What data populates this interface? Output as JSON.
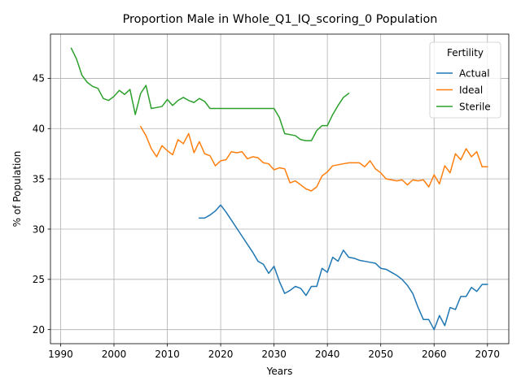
{
  "chart_data": {
    "type": "line",
    "title": "Proportion Male in Whole_Q1_IQ_scoring_0 Population",
    "xlabel": "Years",
    "ylabel": "% of Population",
    "xlim": [
      1988.1,
      2074.0
    ],
    "ylim": [
      18.6,
      49.4
    ],
    "xticks": [
      1990,
      2000,
      2010,
      2020,
      2030,
      2040,
      2050,
      2060,
      2070
    ],
    "yticks": [
      20,
      25,
      30,
      35,
      40,
      45
    ],
    "grid": true,
    "legend": {
      "title": "Fertility",
      "position": "top-right"
    },
    "series": [
      {
        "name": "Actual",
        "color": "#1f77b4",
        "x": [
          2016,
          2017,
          2018,
          2019,
          2020,
          2021,
          2022,
          2023,
          2024,
          2025,
          2026,
          2027,
          2028,
          2029,
          2030,
          2031,
          2032,
          2033,
          2034,
          2035,
          2036,
          2037,
          2038,
          2039,
          2040,
          2041,
          2042,
          2043,
          2044,
          2045,
          2046,
          2047,
          2048,
          2049,
          2050,
          2051,
          2052,
          2053,
          2054,
          2055,
          2056,
          2057,
          2058,
          2059,
          2060,
          2061,
          2062,
          2063,
          2064,
          2065,
          2066,
          2067,
          2068,
          2069,
          2070
        ],
        "y": [
          31.1,
          31.1,
          31.4,
          31.8,
          32.4,
          31.7,
          30.9,
          30.1,
          29.3,
          28.5,
          27.7,
          26.8,
          26.5,
          25.6,
          26.3,
          24.8,
          23.6,
          23.9,
          24.3,
          24.1,
          23.4,
          24.3,
          24.3,
          26.1,
          25.7,
          27.2,
          26.8,
          27.9,
          27.2,
          27.1,
          26.9,
          26.8,
          26.7,
          26.6,
          26.1,
          26.0,
          25.7,
          25.4,
          25.0,
          24.4,
          23.6,
          22.2,
          21.0,
          21.0,
          20.0,
          21.4,
          20.4,
          22.2,
          22.0,
          23.3,
          23.3,
          24.2,
          23.8,
          24.5,
          24.5
        ]
      },
      {
        "name": "Ideal",
        "color": "#ff7f0e",
        "x": [
          2005,
          2006,
          2007,
          2008,
          2009,
          2010,
          2011,
          2012,
          2013,
          2014,
          2015,
          2016,
          2017,
          2018,
          2019,
          2020,
          2021,
          2022,
          2023,
          2024,
          2025,
          2026,
          2027,
          2028,
          2029,
          2030,
          2031,
          2032,
          2033,
          2034,
          2035,
          2036,
          2037,
          2038,
          2039,
          2040,
          2041,
          2042,
          2043,
          2044,
          2045,
          2046,
          2047,
          2048,
          2049,
          2050,
          2051,
          2052,
          2053,
          2054,
          2055,
          2056,
          2057,
          2058,
          2059,
          2060,
          2061,
          2062,
          2063,
          2064,
          2065,
          2066,
          2067,
          2068,
          2069,
          2070
        ],
        "y": [
          40.2,
          39.3,
          38.0,
          37.2,
          38.3,
          37.8,
          37.4,
          38.9,
          38.5,
          39.5,
          37.6,
          38.7,
          37.5,
          37.3,
          36.3,
          36.8,
          36.9,
          37.7,
          37.6,
          37.7,
          37.0,
          37.2,
          37.1,
          36.6,
          36.5,
          35.9,
          36.1,
          36.0,
          34.6,
          34.8,
          34.4,
          34.0,
          33.8,
          34.2,
          35.3,
          35.7,
          36.3,
          36.4,
          36.5,
          36.6,
          36.6,
          36.6,
          36.2,
          36.8,
          36.0,
          35.6,
          35.0,
          34.9,
          34.8,
          34.9,
          34.4,
          34.9,
          34.8,
          34.9,
          34.2,
          35.4,
          34.5,
          36.3,
          35.6,
          37.5,
          36.9,
          38.0,
          37.2,
          37.7,
          36.2,
          36.2
        ]
      },
      {
        "name": "Sterile",
        "color": "#2ca02c",
        "x": [
          1992,
          1993,
          1994,
          1995,
          1996,
          1997,
          1998,
          1999,
          2000,
          2001,
          2002,
          2003,
          2004,
          2005,
          2006,
          2007,
          2008,
          2009,
          2010,
          2011,
          2012,
          2013,
          2014,
          2015,
          2016,
          2017,
          2018,
          2019,
          2020,
          2021,
          2022,
          2023,
          2024,
          2025,
          2026,
          2027,
          2028,
          2029,
          2030,
          2031,
          2032,
          2033,
          2034,
          2035,
          2036,
          2037,
          2038,
          2039,
          2040,
          2041,
          2042,
          2043,
          2044
        ],
        "y": [
          48.0,
          46.9,
          45.3,
          44.6,
          44.2,
          44.0,
          43.0,
          42.8,
          43.2,
          43.8,
          43.4,
          43.9,
          41.4,
          43.5,
          44.3,
          42.0,
          42.1,
          42.2,
          42.9,
          42.3,
          42.8,
          43.1,
          42.8,
          42.6,
          43.0,
          42.7,
          42.0,
          42.0,
          42.0,
          42.0,
          42.0,
          42.0,
          42.0,
          42.0,
          42.0,
          42.0,
          42.0,
          42.0,
          42.0,
          41.1,
          39.5,
          39.4,
          39.3,
          38.9,
          38.8,
          38.8,
          39.8,
          40.3,
          40.3,
          41.4,
          42.3,
          43.1,
          43.5
        ]
      }
    ]
  }
}
